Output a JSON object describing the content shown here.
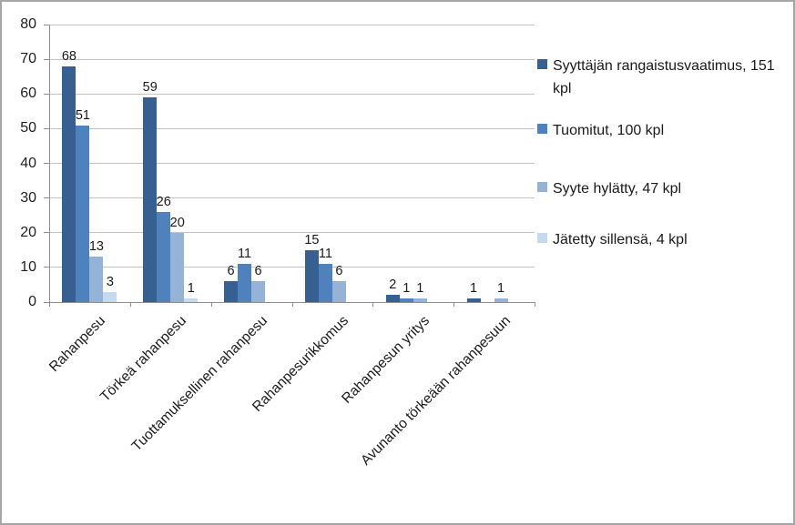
{
  "chart_data": {
    "type": "bar",
    "title": "",
    "xlabel": "",
    "ylabel": "",
    "categories": [
      "Rahanpesu",
      "Törkeä rahanpesu",
      "Tuottamuksellinen rahanpesu",
      "Rahanpesurikkomus",
      "Rahanpesun yritys",
      "Avunanto törkeään rahanpesuun"
    ],
    "series": [
      {
        "name": "Syyttäjän rangaistusvaatimus, 151 kpl",
        "color": "#376092",
        "values": [
          68,
          59,
          6,
          15,
          2,
          1
        ]
      },
      {
        "name": "Tuomitut, 100 kpl",
        "color": "#4F81BD",
        "values": [
          51,
          26,
          11,
          11,
          1,
          0
        ]
      },
      {
        "name": "Syyte hylätty, 47 kpl",
        "color": "#95B3D7",
        "values": [
          13,
          20,
          6,
          6,
          1,
          1
        ]
      },
      {
        "name": "Jätetty sillensä, 4 kpl",
        "color": "#C5D9F1",
        "values": [
          3,
          1,
          0,
          0,
          0,
          0
        ]
      }
    ],
    "y_axis": {
      "min": 0,
      "max": 80,
      "step": 10,
      "ticks": [
        0,
        10,
        20,
        30,
        40,
        50,
        60,
        70,
        80
      ]
    },
    "grid": true,
    "data_labels": true,
    "legend_position": "right"
  }
}
